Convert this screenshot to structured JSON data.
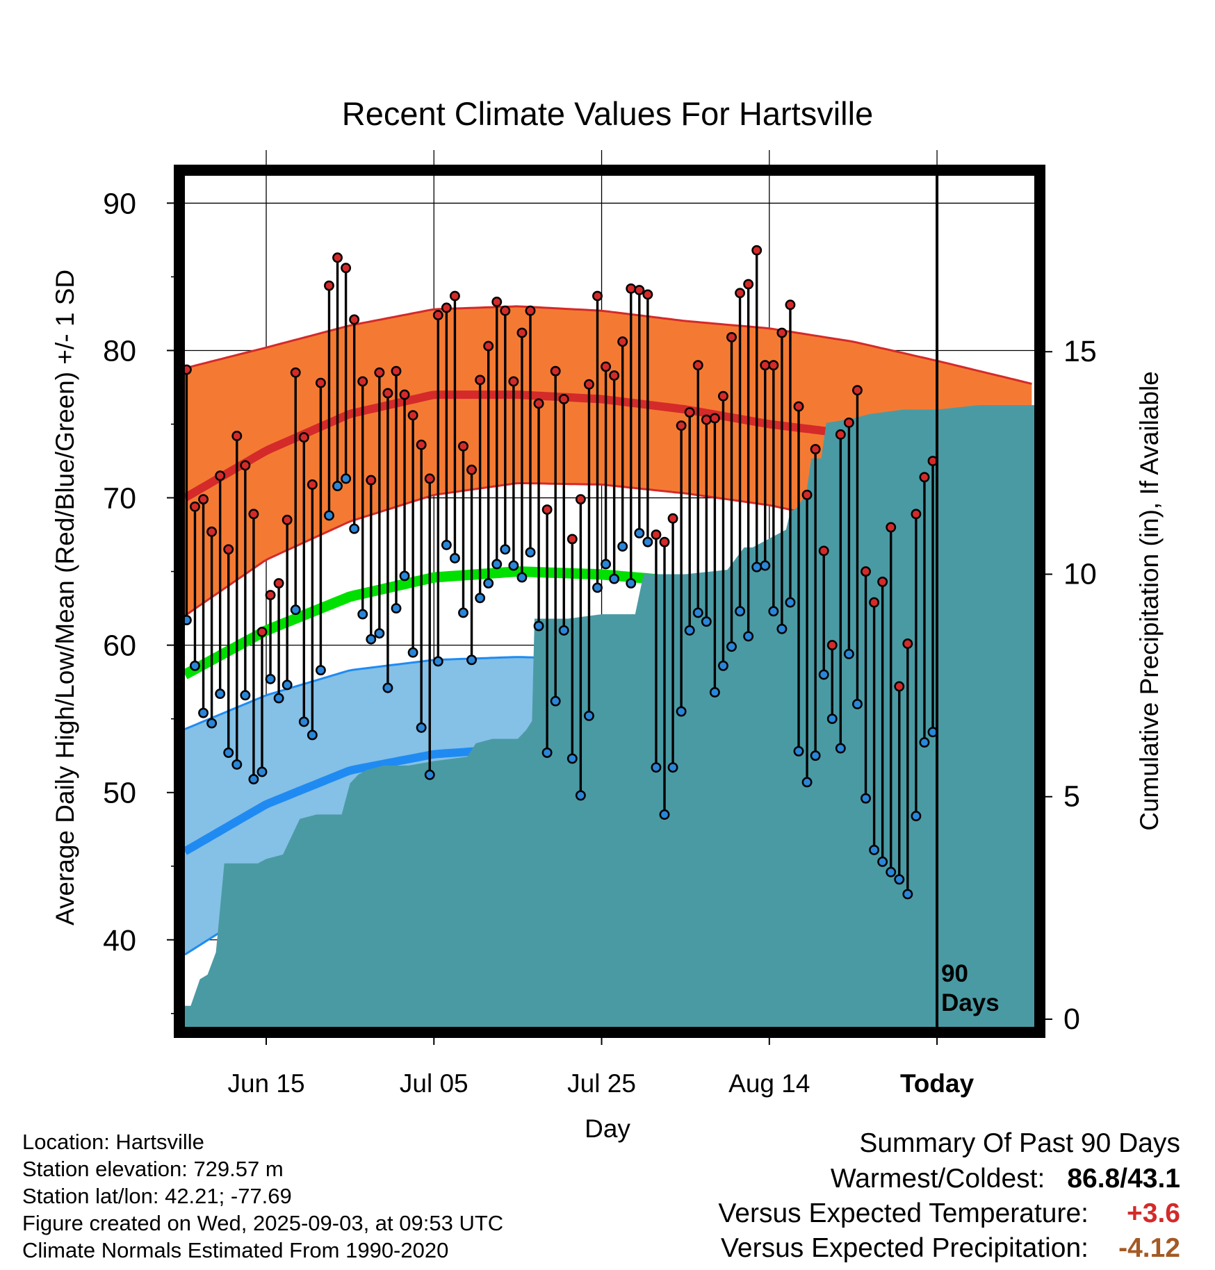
{
  "chart_data": {
    "type": "line",
    "title": "Recent Climate Values For Hartsville",
    "xlabel": "Day",
    "ylabel": "Average Daily High/Low/Mean (Red/Blue/Green) +/- 1 SD",
    "y2label": "Cumulative Precipitation (in), If Available",
    "ylim": [
      34,
      92
    ],
    "y2lim": [
      0,
      19
    ],
    "yticks": [
      40,
      50,
      60,
      70,
      80,
      90
    ],
    "y2ticks": [
      0,
      5,
      10,
      15
    ],
    "xlim": [
      -9.7,
      91.6
    ],
    "xticks": [
      {
        "day": 0,
        "label": "Jun 15"
      },
      {
        "day": 20,
        "label": "Jul 05"
      },
      {
        "day": 40,
        "label": "Jul 25"
      },
      {
        "day": 60,
        "label": "Aug 14"
      },
      {
        "day": 80,
        "label": "Today"
      }
    ],
    "today_marker": {
      "day": 80,
      "label_line1": "90",
      "label_line2": "Days"
    },
    "normals": {
      "days": [
        -9.7,
        0,
        10,
        20,
        30,
        40,
        50,
        60,
        70,
        80,
        91.6
      ],
      "high_mean": [
        70.0,
        73.2,
        75.7,
        77.0,
        77.0,
        76.7,
        76.0,
        75.0,
        74.3,
        72.3,
        69.7
      ],
      "high_plus_sd": [
        78.8,
        80.2,
        81.7,
        82.8,
        83.0,
        82.7,
        82.0,
        81.5,
        80.6,
        79.3,
        77.7
      ],
      "high_minus_sd": [
        62.0,
        65.8,
        68.4,
        70.2,
        71.0,
        70.9,
        70.3,
        69.5,
        68.3,
        66.0,
        62.5
      ],
      "mean": [
        58.0,
        61.0,
        63.3,
        64.6,
        65.0,
        64.8,
        64.3,
        63.8,
        62.8,
        60.8,
        57.7
      ],
      "low_mean": [
        46.0,
        49.2,
        51.5,
        52.6,
        53.0,
        52.8,
        52.5,
        51.6,
        50.2,
        48.4,
        45.8
      ],
      "low_plus_sd": [
        54.3,
        56.6,
        58.3,
        59.0,
        59.2,
        59.0,
        58.7,
        58.2,
        57.2,
        55.8,
        53.3
      ],
      "low_minus_sd": [
        39.0,
        42.5,
        45.2,
        46.4,
        46.9,
        47.0,
        46.5,
        45.5,
        43.2,
        39.5,
        35.0
      ]
    },
    "series": [
      {
        "name": "High",
        "values": [
          78.7,
          69.4,
          69.9,
          67.7,
          71.5,
          66.5,
          74.2,
          72.2,
          68.9,
          60.9,
          63.4,
          64.2,
          68.5,
          78.5,
          74.1,
          70.9,
          77.8,
          84.4,
          86.3,
          85.6,
          82.1,
          77.9,
          71.2,
          78.5,
          77.1,
          78.6,
          77.0,
          75.6,
          73.6,
          71.3,
          82.4,
          82.9,
          83.7,
          73.5,
          71.9,
          78.0,
          80.3,
          83.3,
          82.7,
          77.9,
          81.2,
          82.7,
          76.4,
          69.2,
          78.6,
          76.7,
          67.2,
          69.9,
          77.7,
          83.7,
          78.9,
          78.3,
          80.6,
          84.2,
          84.1,
          83.8,
          67.5,
          67.0,
          68.6,
          74.9,
          75.8,
          79.0,
          75.3,
          75.4,
          76.9,
          80.9,
          83.9,
          84.5,
          86.8,
          79.0,
          79.0,
          81.2,
          83.1,
          76.2,
          70.2,
          73.3,
          66.4,
          60.0,
          74.3,
          75.1,
          77.3,
          65.0,
          62.9,
          64.3,
          68.0,
          57.2,
          60.1,
          68.9,
          71.4,
          72.5
        ]
      },
      {
        "name": "Low",
        "values": [
          61.7,
          58.6,
          55.4,
          54.7,
          56.7,
          52.7,
          51.9,
          56.6,
          50.9,
          51.4,
          57.7,
          56.4,
          57.3,
          62.4,
          54.8,
          53.9,
          58.3,
          68.8,
          70.8,
          71.3,
          67.9,
          62.1,
          60.4,
          60.8,
          57.1,
          62.5,
          64.7,
          59.5,
          54.4,
          51.2,
          58.9,
          66.8,
          65.9,
          62.2,
          59.0,
          63.2,
          64.2,
          65.5,
          66.5,
          65.4,
          64.6,
          66.3,
          61.3,
          52.7,
          56.2,
          61.0,
          52.3,
          49.8,
          55.2,
          63.9,
          65.5,
          64.5,
          66.7,
          64.2,
          67.6,
          67.0,
          51.7,
          48.5,
          51.7,
          55.5,
          61.0,
          62.2,
          61.6,
          56.8,
          58.6,
          59.9,
          62.3,
          60.6,
          65.3,
          65.4,
          62.3,
          61.1,
          62.9,
          52.8,
          50.7,
          52.5,
          58.0,
          55.0,
          53.0,
          59.4,
          56.0,
          49.6,
          46.1,
          45.3,
          44.6,
          44.1,
          43.1,
          48.4,
          53.4,
          54.1
        ]
      }
    ],
    "precip_cumulative": {
      "days": [
        -9.7,
        -9.0,
        -7.9,
        -7.0,
        -6.0,
        -5.5,
        -5.0,
        -1.0,
        0,
        2.0,
        4.0,
        6.0,
        9.0,
        10.0,
        11.0,
        12.0,
        14.0,
        17.0,
        20.0,
        24.0,
        25.0,
        27.0,
        30.0,
        31.0,
        31.7,
        32.0,
        36.0,
        40.0,
        44.0,
        45.0,
        50.0,
        55.0,
        57.0,
        58.0,
        62.0,
        62.5,
        63.3,
        64.4,
        65.0,
        66.2,
        66.8,
        70.0,
        72.0,
        76.0,
        80.0,
        85.0,
        91.6
      ],
      "values": [
        0.3,
        0.3,
        0.9,
        1.0,
        1.5,
        2.5,
        3.5,
        3.5,
        3.6,
        3.7,
        4.5,
        4.6,
        4.6,
        5.3,
        5.5,
        5.6,
        5.7,
        5.7,
        5.8,
        5.9,
        6.2,
        6.3,
        6.3,
        6.5,
        6.7,
        9.0,
        9.0,
        9.1,
        9.1,
        10.0,
        10.0,
        10.1,
        10.6,
        10.6,
        11.0,
        11.4,
        11.5,
        11.8,
        12.6,
        12.6,
        13.4,
        13.5,
        13.6,
        13.7,
        13.7,
        13.8,
        13.8
      ]
    }
  },
  "info": {
    "location": "Location: Hartsville",
    "elevation": "Station elevation: 729.57 m",
    "latlon": "Station lat/lon: 42.21; -77.69",
    "created": "Figure created on Wed, 2025-09-03, at 09:53 UTC",
    "normals": "Climate Normals Estimated From 1990-2020"
  },
  "summary": {
    "title": "Summary Of Past 90 Days",
    "warmest_label": "Warmest/Coldest:",
    "warmest_value": "86.8/43.1",
    "temp_label": "Versus Expected Temperature:",
    "temp_value": "+3.6",
    "precip_label": "Versus Expected Precipitation:",
    "precip_value": "-4.12"
  },
  "colors": {
    "high_band": "#f47a33",
    "high_line": "#d42a2a",
    "low_band": "#85c0e6",
    "low_line": "#1f8bf2",
    "low_band_edge": "#1f8bf2",
    "mean_line": "#00e000",
    "precip_fill": "#4a9aa4",
    "high_point": "#d42a2a",
    "low_point": "#2a86d8",
    "temp_anomaly": "#d42a2a",
    "precip_anomaly": "#a35a25"
  }
}
